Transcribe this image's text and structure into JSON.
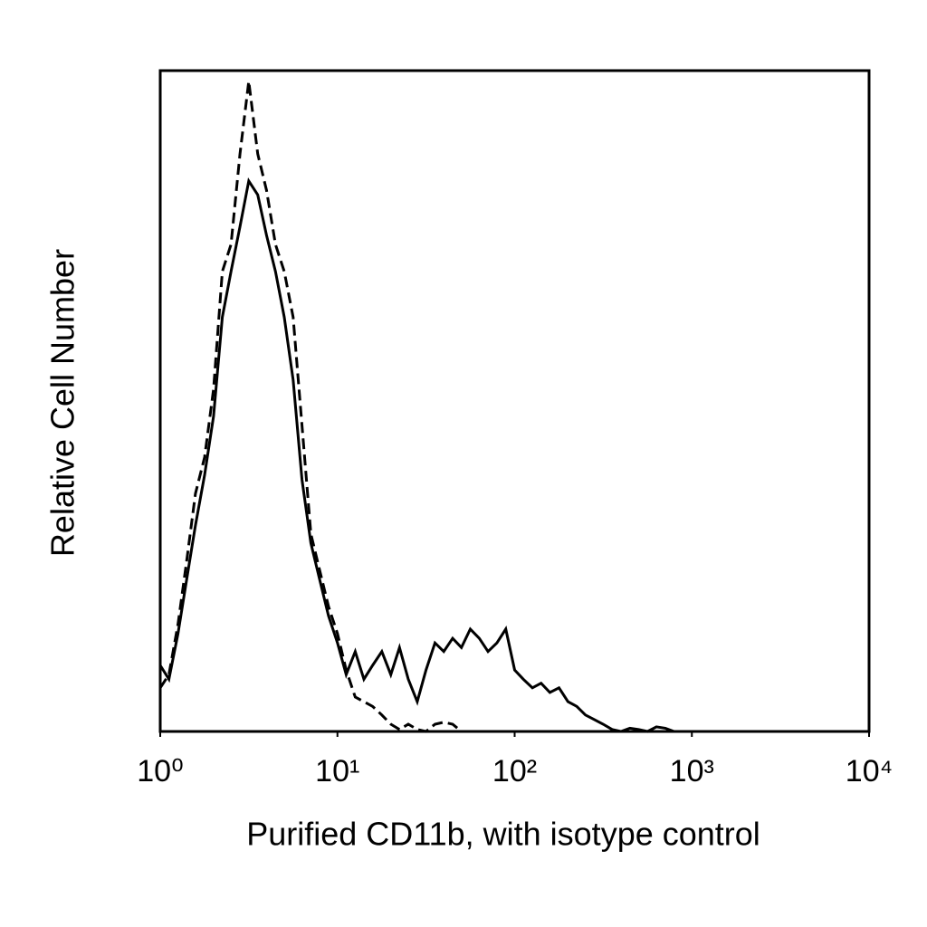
{
  "chart_data": {
    "type": "line",
    "x_label": "Purified CD11b, with isotype control",
    "y_label": "Relative Cell Number",
    "log_x": true,
    "xlim": [
      1,
      10000
    ],
    "xticks": [
      {
        "value": 1,
        "label": "10⁰"
      },
      {
        "value": 10,
        "label": "10¹"
      },
      {
        "value": 100,
        "label": "10²"
      },
      {
        "value": 1000,
        "label": "10³"
      },
      {
        "value": 10000,
        "label": "10⁴"
      }
    ],
    "ylim": [
      0,
      100
    ],
    "x": [
      1,
      1.12,
      1.26,
      1.41,
      1.58,
      1.78,
      2,
      2.24,
      2.51,
      2.82,
      3.16,
      3.55,
      3.98,
      4.47,
      5.01,
      5.62,
      6.31,
      7.08,
      7.94,
      8.91,
      10,
      11.2,
      12.6,
      14.1,
      15.8,
      17.8,
      20,
      22.4,
      25.1,
      28.2,
      31.6,
      35.5,
      39.8,
      44.7,
      50.1,
      56.2,
      63.1,
      70.8,
      79.4,
      89.1,
      100,
      112,
      126,
      141,
      158,
      178,
      200,
      224,
      251,
      282,
      316,
      355,
      398,
      447,
      501,
      562,
      631,
      708,
      794,
      10000
    ],
    "series": [
      {
        "color": "#000000",
        "dashed": false,
        "values": [
          10.0,
          7.9,
          14.8,
          23.0,
          31.2,
          38.8,
          47.7,
          62.7,
          69.6,
          76.4,
          83.3,
          81.2,
          75.1,
          69.6,
          62.7,
          53.2,
          38.1,
          28.5,
          23.0,
          17.5,
          13.4,
          8.6,
          12.1,
          7.9,
          10.0,
          12.1,
          8.6,
          12.7,
          7.9,
          4.5,
          9.3,
          13.4,
          12.1,
          14.1,
          12.7,
          15.5,
          14.1,
          12.1,
          13.4,
          15.5,
          9.3,
          7.9,
          6.6,
          7.3,
          5.9,
          6.6,
          4.5,
          3.8,
          2.5,
          1.8,
          1.1,
          0.3,
          0,
          0.5,
          0.3,
          0,
          0.7,
          0.5,
          0,
          0
        ]
      },
      {
        "color": "#000000",
        "dashed": true,
        "values": [
          6.6,
          8.6,
          16.2,
          25.8,
          36.0,
          41.5,
          51.8,
          69.6,
          73.7,
          87.4,
          98.4,
          87.4,
          81.9,
          73.7,
          69.6,
          62.7,
          46.3,
          29.9,
          24.4,
          18.9,
          14.8,
          9.3,
          5.2,
          4.5,
          3.8,
          2.5,
          1.1,
          0.3,
          1.1,
          0.3,
          0,
          1.1,
          1.4,
          1.1,
          0,
          null,
          null,
          null,
          null,
          null,
          null,
          null,
          null,
          null,
          null,
          null,
          null,
          null,
          null,
          null,
          null,
          null,
          null,
          null,
          null,
          null,
          null,
          null,
          null,
          null
        ]
      }
    ]
  }
}
